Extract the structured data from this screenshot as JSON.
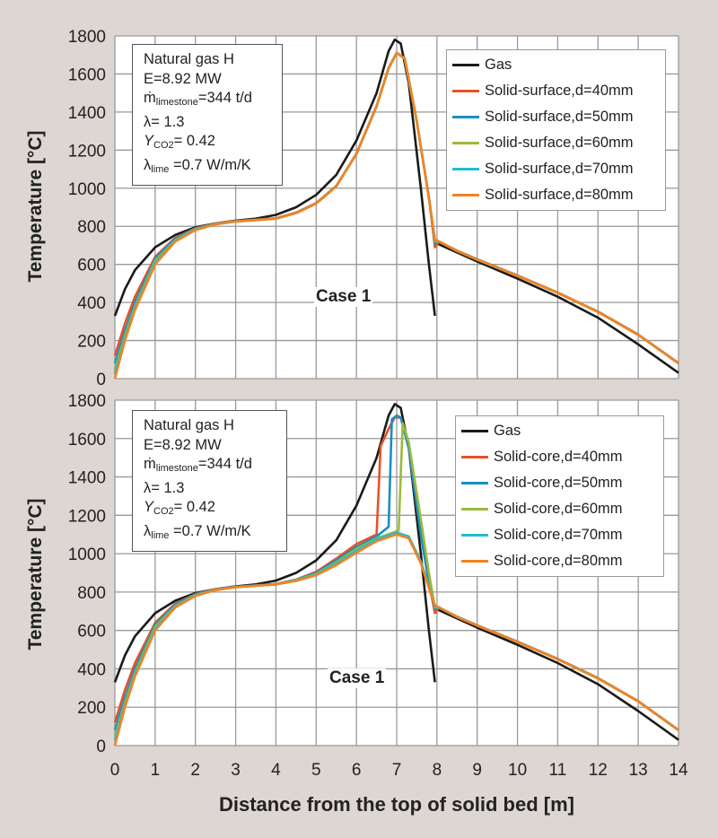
{
  "chart_data": [
    {
      "type": "line",
      "title": "",
      "xlabel": "Distance from the top of solid bed [m]",
      "ylabel": "Temperature [°C]",
      "xlim": [
        0,
        14
      ],
      "ylim": [
        0,
        1800
      ],
      "xticks": [
        0,
        1,
        2,
        3,
        4,
        5,
        6,
        7,
        8,
        9,
        10,
        11,
        12,
        13,
        14
      ],
      "yticks": [
        0,
        200,
        400,
        600,
        800,
        1000,
        1200,
        1400,
        1600,
        1800
      ],
      "grid": true,
      "legend_position": "top-right",
      "annotation": "Case 1",
      "info": [
        {
          "main": "Natural gas H",
          "sub": "",
          "rest": ""
        },
        {
          "main": "E=8.92 MW",
          "sub": "",
          "rest": ""
        },
        {
          "main": "ṁ",
          "sub": "limestone",
          "rest": "=344 t/d"
        },
        {
          "main": "λ= 1.3",
          "sub": "",
          "rest": ""
        },
        {
          "main": "Y",
          "sub": "CO2",
          "rest": "=  0.42"
        },
        {
          "main": "λ",
          "sub": "lime",
          "rest": " =0.7 W/m/K"
        }
      ],
      "series": [
        {
          "name": "Gas",
          "color": "#1a1a1a",
          "x": [
            0,
            0.25,
            0.5,
            1,
            1.5,
            2,
            2.5,
            3,
            3.5,
            4,
            4.5,
            5,
            5.5,
            6,
            6.5,
            6.8,
            6.95,
            7.1,
            7.3,
            7.6,
            7.8,
            7.95,
            null,
            8.0,
            9,
            10,
            11,
            12,
            13,
            14
          ],
          "y": [
            330,
            470,
            570,
            690,
            755,
            795,
            815,
            830,
            840,
            860,
            900,
            965,
            1070,
            1250,
            1500,
            1720,
            1780,
            1760,
            1550,
            1000,
            600,
            330,
            null,
            710,
            615,
            525,
            430,
            320,
            180,
            30
          ]
        },
        {
          "name": "Solid-surface,d=40mm",
          "color": "#e8502a",
          "x": [
            0,
            0.25,
            0.5,
            1,
            1.5,
            2,
            2.5,
            3,
            4,
            4.5,
            5,
            5.5,
            6,
            6.5,
            6.8,
            7,
            7.2,
            7.5,
            7.8,
            7.95,
            8.05,
            8.5,
            9,
            10,
            11,
            12,
            13,
            14
          ],
          "y": [
            120,
            290,
            430,
            640,
            740,
            790,
            815,
            828,
            842,
            872,
            922,
            1012,
            1182,
            1432,
            1632,
            1712,
            1682,
            1352,
            952,
            690,
            720,
            672,
            627,
            542,
            452,
            352,
            232,
            82
          ]
        },
        {
          "name": "Solid-surface,d=50mm",
          "color": "#1a8fc0",
          "x": [
            0,
            0.25,
            0.5,
            1,
            1.5,
            2,
            2.5,
            3,
            4,
            4.5,
            5,
            5.5,
            6,
            6.5,
            6.8,
            7,
            7.2,
            7.5,
            7.8,
            7.95,
            8.05,
            8.5,
            9,
            10,
            11,
            12,
            13,
            14
          ],
          "y": [
            80,
            250,
            400,
            630,
            735,
            788,
            813,
            827,
            841,
            871,
            921,
            1011,
            1181,
            1431,
            1631,
            1711,
            1681,
            1351,
            951,
            710,
            720,
            671,
            626,
            541,
            451,
            351,
            231,
            81
          ]
        },
        {
          "name": "Solid-surface,d=60mm",
          "color": "#9bbb3c",
          "x": [
            0,
            0.25,
            0.5,
            1,
            1.5,
            2,
            2.5,
            3,
            4,
            4.5,
            5,
            5.5,
            6,
            6.5,
            6.8,
            7,
            7.2,
            7.5,
            7.8,
            7.95,
            8.05,
            8.5,
            9,
            10,
            11,
            12,
            13,
            14
          ],
          "y": [
            50,
            225,
            380,
            620,
            728,
            785,
            812,
            826,
            840,
            870,
            920,
            1010,
            1180,
            1430,
            1630,
            1710,
            1680,
            1350,
            950,
            720,
            720,
            670,
            625,
            540,
            450,
            350,
            230,
            80
          ]
        },
        {
          "name": "Solid-surface,d=70mm",
          "color": "#22bcd0",
          "x": [
            0,
            0.25,
            0.5,
            1,
            1.5,
            2,
            2.5,
            3,
            4,
            4.5,
            5,
            5.5,
            6,
            6.5,
            6.8,
            7,
            7.2,
            7.5,
            7.8,
            7.95,
            8.05,
            8.5,
            9,
            10,
            11,
            12,
            13,
            14
          ],
          "y": [
            30,
            210,
            370,
            610,
            724,
            783,
            811,
            825,
            840,
            870,
            920,
            1010,
            1180,
            1430,
            1630,
            1710,
            1680,
            1350,
            950,
            725,
            720,
            670,
            625,
            540,
            450,
            350,
            230,
            80
          ]
        },
        {
          "name": "Solid-surface,d=80mm",
          "color": "#f58220",
          "x": [
            0,
            0.25,
            0.5,
            1,
            1.5,
            2,
            2.5,
            3,
            4,
            4.5,
            5,
            5.5,
            6,
            6.5,
            6.8,
            7,
            7.2,
            7.5,
            7.8,
            7.95,
            8.05,
            8.5,
            9,
            10,
            11,
            12,
            13,
            14
          ],
          "y": [
            0,
            200,
            360,
            600,
            720,
            780,
            810,
            825,
            840,
            870,
            920,
            1010,
            1180,
            1430,
            1630,
            1710,
            1680,
            1350,
            950,
            730,
            720,
            670,
            625,
            540,
            450,
            350,
            230,
            80
          ]
        }
      ]
    },
    {
      "type": "line",
      "title": "",
      "xlabel": "Distance from the top of solid bed [m]",
      "ylabel": "Temperature [°C]",
      "xlim": [
        0,
        14
      ],
      "ylim": [
        0,
        1800
      ],
      "xticks": [
        0,
        1,
        2,
        3,
        4,
        5,
        6,
        7,
        8,
        9,
        10,
        11,
        12,
        13,
        14
      ],
      "yticks": [
        0,
        200,
        400,
        600,
        800,
        1000,
        1200,
        1400,
        1600,
        1800
      ],
      "grid": true,
      "legend_position": "top-right",
      "annotation": "Case 1",
      "info": [
        {
          "main": "Natural gas H",
          "sub": "",
          "rest": ""
        },
        {
          "main": "E=8.92 MW",
          "sub": "",
          "rest": ""
        },
        {
          "main": "ṁ",
          "sub": "limestone",
          "rest": "=344 t/d"
        },
        {
          "main": "λ= 1.3",
          "sub": "",
          "rest": ""
        },
        {
          "main": "Y",
          "sub": "CO2",
          "rest": "=  0.42"
        },
        {
          "main": "λ",
          "sub": "lime",
          "rest": " =0.7 W/m/K"
        }
      ],
      "series": [
        {
          "name": "Gas",
          "color": "#1a1a1a",
          "x": [
            0,
            0.25,
            0.5,
            1,
            1.5,
            2,
            2.5,
            3,
            3.5,
            4,
            4.5,
            5,
            5.5,
            6,
            6.5,
            6.8,
            6.95,
            7.1,
            7.3,
            7.6,
            7.8,
            7.95,
            null,
            8.0,
            9,
            10,
            11,
            12,
            13,
            14
          ],
          "y": [
            330,
            470,
            570,
            690,
            755,
            795,
            815,
            830,
            840,
            860,
            900,
            965,
            1070,
            1250,
            1500,
            1720,
            1780,
            1760,
            1550,
            1000,
            600,
            330,
            null,
            710,
            615,
            525,
            430,
            320,
            180,
            30
          ]
        },
        {
          "name": "Solid-core,d=40mm",
          "color": "#e8502a",
          "x": [
            0,
            0.25,
            0.5,
            1,
            1.5,
            2,
            2.5,
            3,
            4,
            4.5,
            5,
            5.5,
            6,
            6.5,
            6.6,
            6.8,
            6.95,
            7.1,
            7.3,
            7.6,
            7.8,
            7.95,
            8.05,
            8.5,
            9,
            10,
            11,
            12,
            13,
            14
          ],
          "y": [
            120,
            290,
            430,
            640,
            740,
            790,
            815,
            828,
            842,
            865,
            905,
            975,
            1050,
            1100,
            1560,
            1650,
            1710,
            1710,
            1550,
            1100,
            850,
            690,
            720,
            672,
            627,
            542,
            452,
            352,
            232,
            82
          ]
        },
        {
          "name": "Solid-core,d=50mm",
          "color": "#1a8fc0",
          "x": [
            0,
            0.25,
            0.5,
            1,
            1.5,
            2,
            2.5,
            3,
            4,
            4.5,
            5,
            5.5,
            6,
            6.5,
            6.8,
            6.88,
            7.0,
            7.1,
            7.3,
            7.6,
            7.8,
            7.95,
            8.05,
            8.5,
            9,
            10,
            11,
            12,
            13,
            14
          ],
          "y": [
            80,
            250,
            400,
            630,
            735,
            788,
            813,
            827,
            841,
            864,
            900,
            965,
            1035,
            1090,
            1140,
            1700,
            1720,
            1710,
            1550,
            1100,
            850,
            710,
            720,
            671,
            626,
            541,
            451,
            351,
            231,
            81
          ]
        },
        {
          "name": "Solid-core,d=60mm",
          "color": "#9bbb3c",
          "x": [
            0,
            0.25,
            0.5,
            1,
            1.5,
            2,
            2.5,
            3,
            4,
            4.5,
            5,
            5.5,
            6,
            6.5,
            7.05,
            7.15,
            7.3,
            7.6,
            7.8,
            7.95,
            8.05,
            8.5,
            9,
            10,
            11,
            12,
            13,
            14
          ],
          "y": [
            50,
            225,
            380,
            620,
            728,
            785,
            812,
            826,
            840,
            862,
            895,
            955,
            1025,
            1080,
            1120,
            1680,
            1580,
            1180,
            900,
            720,
            720,
            670,
            625,
            540,
            450,
            350,
            230,
            80
          ]
        },
        {
          "name": "Solid-core,d=70mm",
          "color": "#22bcd0",
          "x": [
            0,
            0.25,
            0.5,
            1,
            1.5,
            2,
            2.5,
            3,
            4,
            4.5,
            5,
            5.5,
            6,
            6.5,
            7,
            7.3,
            7.6,
            7.8,
            7.95,
            8.05,
            8.5,
            9,
            10,
            11,
            12,
            13,
            14
          ],
          "y": [
            30,
            210,
            370,
            610,
            724,
            783,
            811,
            825,
            840,
            860,
            892,
            948,
            1015,
            1075,
            1110,
            1090,
            960,
            830,
            725,
            720,
            670,
            625,
            540,
            450,
            350,
            230,
            80
          ]
        },
        {
          "name": "Solid-core,d=80mm",
          "color": "#f58220",
          "x": [
            0,
            0.25,
            0.5,
            1,
            1.5,
            2,
            2.5,
            3,
            4,
            4.5,
            5,
            5.5,
            6,
            6.5,
            7,
            7.3,
            7.6,
            7.8,
            7.95,
            8.05,
            8.5,
            9,
            10,
            11,
            12,
            13,
            14
          ],
          "y": [
            0,
            200,
            360,
            600,
            720,
            780,
            810,
            825,
            840,
            858,
            888,
            940,
            1005,
            1065,
            1100,
            1080,
            950,
            820,
            730,
            720,
            670,
            625,
            540,
            450,
            350,
            230,
            80
          ]
        }
      ]
    }
  ]
}
